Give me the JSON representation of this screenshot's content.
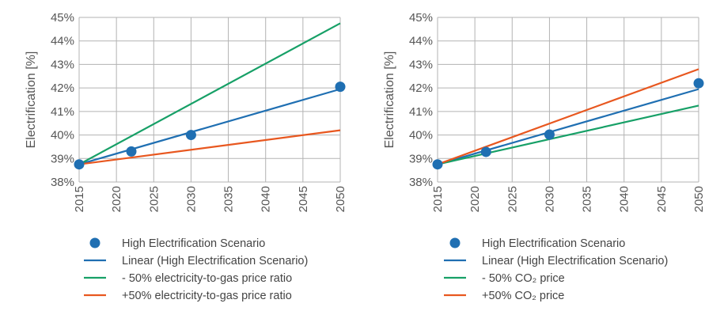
{
  "chart_data": [
    {
      "type": "line",
      "ylabel": "Electrification [%]",
      "xlim": [
        2015,
        2050
      ],
      "ylim": [
        38,
        45
      ],
      "x_ticks": [
        "2015",
        "2020",
        "2025",
        "2030",
        "2035",
        "2040",
        "2045",
        "2050"
      ],
      "y_ticks": [
        "38%",
        "39%",
        "40%",
        "41%",
        "42%",
        "43%",
        "44%",
        "45%"
      ],
      "grid": true,
      "scenario_points": {
        "x": [
          2015,
          2022,
          2030,
          2050
        ],
        "y": [
          38.75,
          39.3,
          40.0,
          42.05
        ]
      },
      "series": [
        {
          "name": "Linear (High Electrification Scenario)",
          "x": [
            2015,
            2050
          ],
          "y": [
            38.75,
            41.95
          ],
          "color": "#1f6fb2"
        },
        {
          "name": "- 50% electricity-to-gas price ratio",
          "x": [
            2015,
            2050
          ],
          "y": [
            38.75,
            44.75
          ],
          "color": "#17a067"
        },
        {
          "name": "+50% electricity-to-gas price ratio",
          "x": [
            2015,
            2050
          ],
          "y": [
            38.75,
            40.2
          ],
          "color": "#e8571f"
        }
      ],
      "legend": {
        "position": "bottom",
        "items": [
          {
            "label": "High Electrification Scenario",
            "marker": "dot",
            "color": "#1f6fb2"
          },
          {
            "label": "Linear (High Electrification Scenario)",
            "marker": "line",
            "color": "#1f6fb2"
          },
          {
            "label": "- 50% electricity-to-gas price ratio",
            "marker": "line",
            "color": "#17a067"
          },
          {
            "label": "+50% electricity-to-gas price ratio",
            "marker": "line",
            "color": "#e8571f"
          }
        ]
      }
    },
    {
      "type": "line",
      "ylabel": "Electrification [%]",
      "xlim": [
        2015,
        2050
      ],
      "ylim": [
        38,
        45
      ],
      "x_ticks": [
        "2015",
        "2020",
        "2025",
        "2030",
        "2035",
        "2040",
        "2045",
        "2050"
      ],
      "y_ticks": [
        "38%",
        "39%",
        "40%",
        "41%",
        "42%",
        "43%",
        "44%",
        "45%"
      ],
      "grid": true,
      "scenario_points": {
        "x": [
          2015,
          2021.5,
          2030,
          2050
        ],
        "y": [
          38.75,
          39.28,
          40.02,
          42.2
        ]
      },
      "series": [
        {
          "name": "Linear (High Electrification Scenario)",
          "x": [
            2015,
            2050
          ],
          "y": [
            38.75,
            41.95
          ],
          "color": "#1f6fb2"
        },
        {
          "name": "- 50% CO₂ price",
          "x": [
            2015,
            2050
          ],
          "y": [
            38.75,
            41.25
          ],
          "color": "#17a067"
        },
        {
          "name": "+50% CO₂ price",
          "x": [
            2015,
            2050
          ],
          "y": [
            38.75,
            42.8
          ],
          "color": "#e8571f"
        }
      ],
      "legend": {
        "position": "bottom",
        "items": [
          {
            "label": "High Electrification Scenario",
            "marker": "dot",
            "color": "#1f6fb2"
          },
          {
            "label": "Linear (High Electrification Scenario)",
            "marker": "line",
            "color": "#1f6fb2"
          },
          {
            "label": "- 50% CO₂ price",
            "marker": "line",
            "color": "#17a067"
          },
          {
            "label": "+50% CO₂ price",
            "marker": "line",
            "color": "#e8571f"
          }
        ]
      }
    }
  ]
}
